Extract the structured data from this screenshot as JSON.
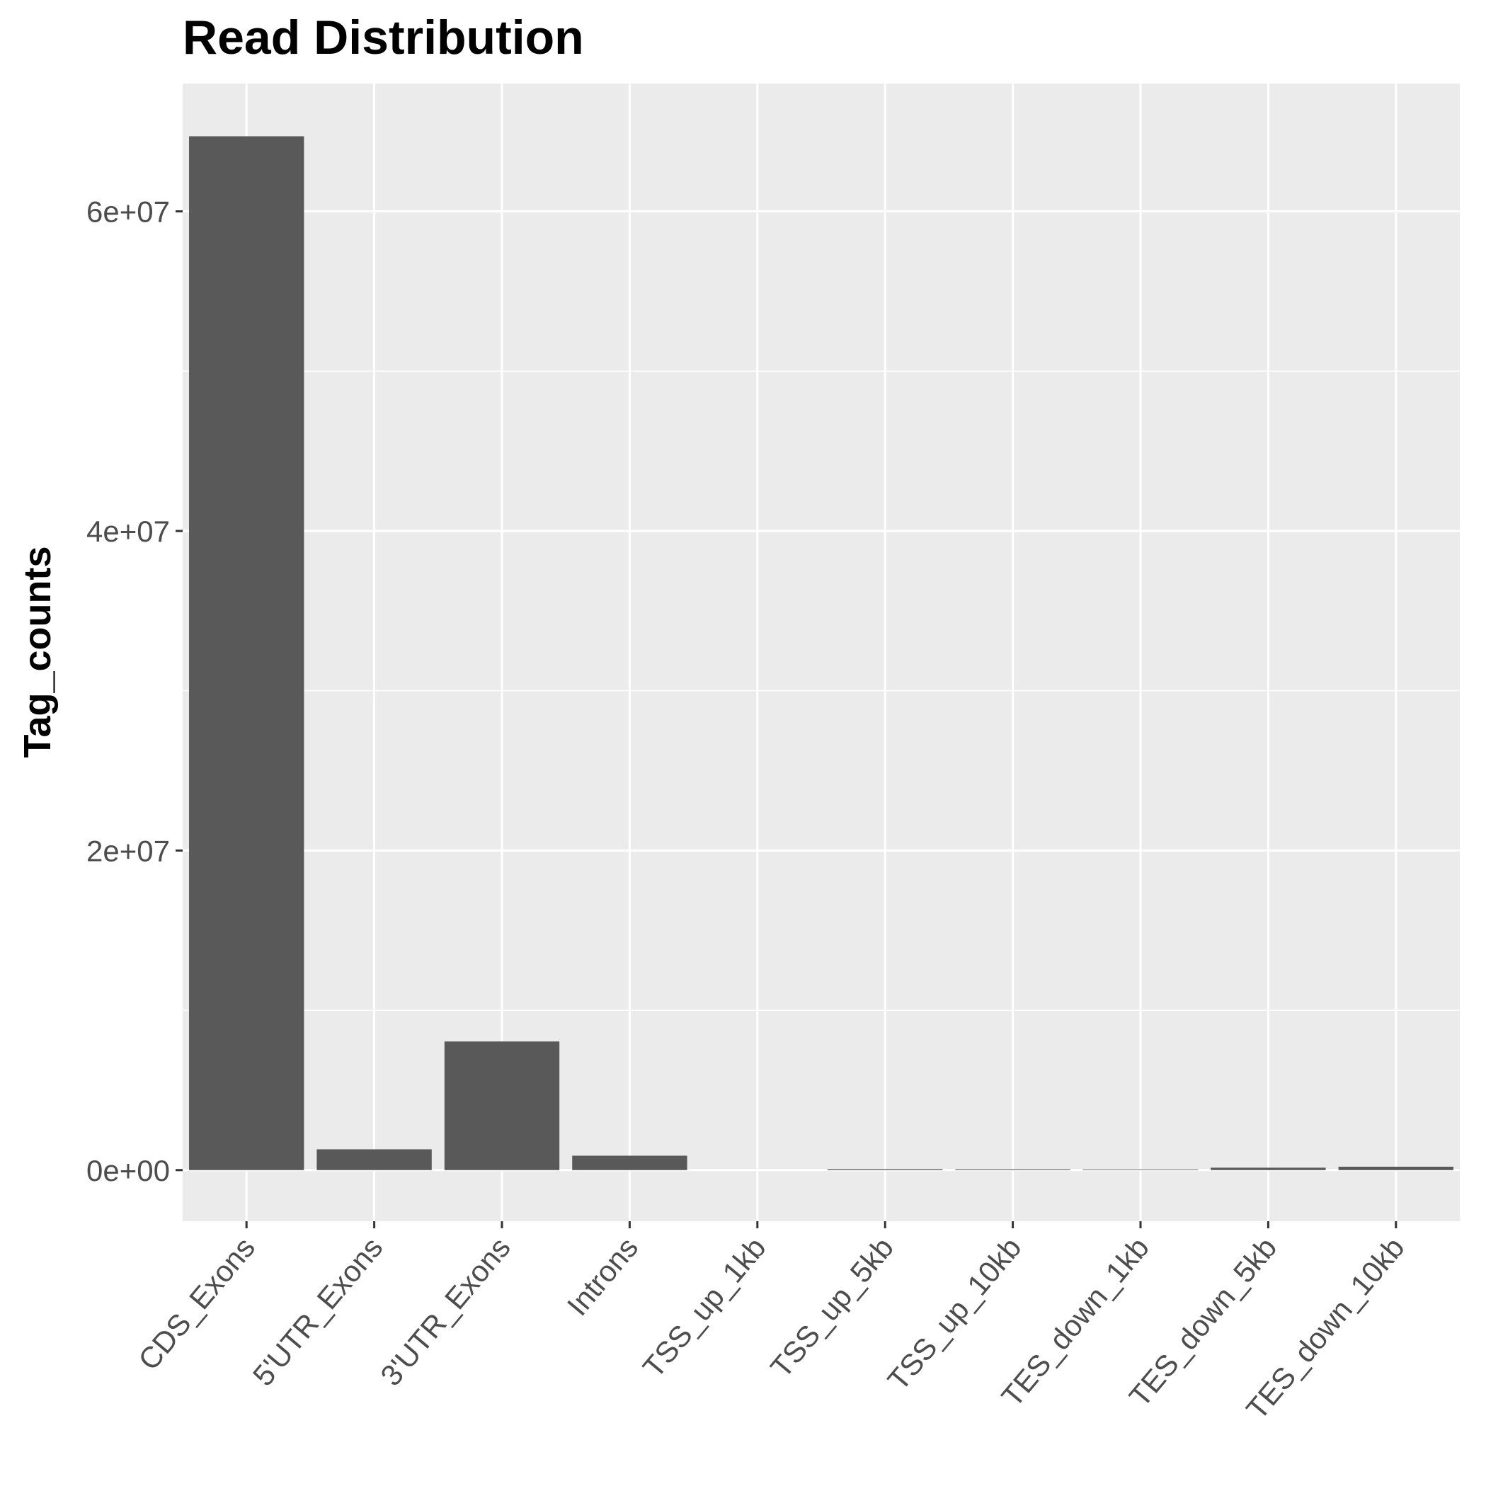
{
  "chart_data": {
    "type": "bar",
    "title": "Read Distribution",
    "xlabel": "",
    "ylabel": "Tag_counts",
    "categories": [
      "CDS_Exons",
      "5'UTR_Exons",
      "3'UTR_Exons",
      "Introns",
      "TSS_up_1kb",
      "TSS_up_5kb",
      "TSS_up_10kb",
      "TES_down_1kb",
      "TES_down_5kb",
      "TES_down_10kb"
    ],
    "values": [
      64700000,
      1300000,
      8050000,
      900000,
      0,
      60000,
      50000,
      40000,
      150000,
      210000
    ],
    "ylim": [
      -3200000,
      68000000
    ],
    "yticks": [
      {
        "value": 0,
        "label": "0e+00"
      },
      {
        "value": 20000000,
        "label": "2e+07"
      },
      {
        "value": 40000000,
        "label": "4e+07"
      },
      {
        "value": 60000000,
        "label": "6e+07"
      }
    ],
    "minor_yticks": [
      10000000,
      30000000,
      50000000
    ],
    "grid": true,
    "legend": "none",
    "colors": {
      "bar": "#595959",
      "panel": "#ebebeb",
      "grid": "#ffffff",
      "tick_text": "#4d4d4d",
      "tick_mark": "#333333",
      "title": "#000000"
    }
  }
}
